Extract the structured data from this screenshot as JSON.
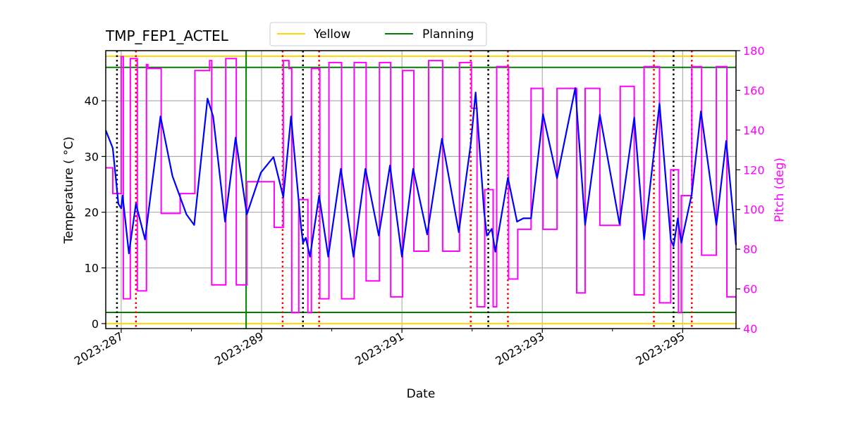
{
  "chart_data": {
    "type": "line",
    "title": "TMP_FEP1_ACTEL",
    "xlabel": "Date",
    "ylabel": "Temperature ($^\\circ$C)",
    "ylabel_display": "Temperature ( °C)",
    "y2label": "Pitch (deg)",
    "xlim": [
      286.78,
      295.76
    ],
    "ylim": [
      -0.9,
      49
    ],
    "y2lim": [
      40,
      180
    ],
    "x_major_ticks": [
      287,
      289,
      291,
      293,
      295
    ],
    "x_tick_labels": [
      "2023:287",
      "2023:289",
      "2023:291",
      "2023:293",
      "2023:295"
    ],
    "x_minor_ticks": [
      288,
      290,
      292,
      294
    ],
    "y_ticks": [
      0,
      10,
      20,
      30,
      40
    ],
    "y2_ticks": [
      40,
      60,
      80,
      100,
      120,
      140,
      160,
      180
    ],
    "grid": true,
    "legend": {
      "placement": "top-center",
      "entries": [
        {
          "name": "Yellow",
          "color": "#ffd700"
        },
        {
          "name": "Planning",
          "color": "#008000"
        }
      ]
    },
    "hlines": [
      {
        "name": "Yellow",
        "values": [
          0,
          48
        ],
        "color": "#ffd700"
      },
      {
        "name": "Planning",
        "values": [
          2,
          46
        ],
        "color": "#008000"
      }
    ],
    "vline_green": {
      "x": 288.78,
      "color": "#008000"
    },
    "vlines_black_dotted": [
      286.94,
      289.59,
      292.23,
      294.87
    ],
    "vlines_red_dotted": [
      287.21,
      289.3,
      289.82,
      291.98,
      292.51,
      294.59,
      295.13
    ],
    "series": [
      {
        "color": "#0000ff",
        "axis": "left",
        "points": [
          [
            286.78,
            34.7
          ],
          [
            286.88,
            31.5
          ],
          [
            286.96,
            21.5
          ],
          [
            287.0,
            20.7
          ],
          [
            287.02,
            23
          ],
          [
            287.11,
            12.6
          ],
          [
            287.21,
            21.5
          ],
          [
            287.34,
            15.1
          ],
          [
            287.56,
            37.2
          ],
          [
            287.73,
            26.5
          ],
          [
            287.93,
            19.6
          ],
          [
            288.04,
            17.7
          ],
          [
            288.23,
            40.4
          ],
          [
            288.31,
            37.2
          ],
          [
            288.48,
            18.3
          ],
          [
            288.63,
            33.4
          ],
          [
            288.79,
            19.6
          ],
          [
            288.99,
            27.1
          ],
          [
            289.17,
            29.9
          ],
          [
            289.31,
            22.7
          ],
          [
            289.42,
            37.2
          ],
          [
            289.56,
            17.7
          ],
          [
            289.59,
            14.5
          ],
          [
            289.63,
            15.4
          ],
          [
            289.69,
            12
          ],
          [
            289.82,
            23
          ],
          [
            289.95,
            12
          ],
          [
            290.13,
            27.8
          ],
          [
            290.31,
            12
          ],
          [
            290.48,
            27.8
          ],
          [
            290.67,
            15.8
          ],
          [
            290.83,
            28.4
          ],
          [
            291.0,
            12
          ],
          [
            291.16,
            27.8
          ],
          [
            291.36,
            16
          ],
          [
            291.57,
            33.2
          ],
          [
            291.81,
            16.4
          ],
          [
            291.98,
            32.2
          ],
          [
            292.05,
            41.5
          ],
          [
            292.17,
            20.2
          ],
          [
            292.21,
            15.8
          ],
          [
            292.28,
            17
          ],
          [
            292.33,
            12.9
          ],
          [
            292.51,
            26.2
          ],
          [
            292.64,
            18.3
          ],
          [
            292.73,
            18.9
          ],
          [
            292.84,
            18.9
          ],
          [
            293.01,
            37.6
          ],
          [
            293.21,
            26.1
          ],
          [
            293.47,
            42.3
          ],
          [
            293.61,
            17.7
          ],
          [
            293.82,
            37.5
          ],
          [
            294.1,
            17.9
          ],
          [
            294.31,
            37
          ],
          [
            294.45,
            15.1
          ],
          [
            294.67,
            39.5
          ],
          [
            294.83,
            15.1
          ],
          [
            294.87,
            13.9
          ],
          [
            294.93,
            18.9
          ],
          [
            294.98,
            14.5
          ],
          [
            295.13,
            23.3
          ],
          [
            295.26,
            38.1
          ],
          [
            295.48,
            17.7
          ],
          [
            295.62,
            32.8
          ],
          [
            295.76,
            14.1
          ]
        ]
      },
      {
        "color": "#ff00ff",
        "axis": "right",
        "step": true,
        "points": [
          [
            286.78,
            121
          ],
          [
            286.88,
            108
          ],
          [
            287.0,
            177
          ],
          [
            287.03,
            55
          ],
          [
            287.13,
            176
          ],
          [
            287.23,
            59
          ],
          [
            287.36,
            173
          ],
          [
            287.38,
            171
          ],
          [
            287.57,
            98
          ],
          [
            287.84,
            108
          ],
          [
            288.05,
            170
          ],
          [
            288.26,
            175
          ],
          [
            288.29,
            62
          ],
          [
            288.49,
            176
          ],
          [
            288.64,
            62
          ],
          [
            288.79,
            114
          ],
          [
            289.18,
            91
          ],
          [
            289.31,
            175
          ],
          [
            289.39,
            171
          ],
          [
            289.43,
            48
          ],
          [
            289.53,
            105
          ],
          [
            289.66,
            48
          ],
          [
            289.71,
            171
          ],
          [
            289.83,
            55
          ],
          [
            289.96,
            174
          ],
          [
            290.14,
            55
          ],
          [
            290.32,
            174
          ],
          [
            290.49,
            64
          ],
          [
            290.68,
            174
          ],
          [
            290.84,
            56
          ],
          [
            291.01,
            170
          ],
          [
            291.17,
            79
          ],
          [
            291.38,
            175
          ],
          [
            291.58,
            79
          ],
          [
            291.82,
            174
          ],
          [
            291.99,
            151
          ],
          [
            292.07,
            51
          ],
          [
            292.18,
            110
          ],
          [
            292.3,
            51
          ],
          [
            292.35,
            172
          ],
          [
            292.52,
            65
          ],
          [
            292.65,
            90
          ],
          [
            292.84,
            161
          ],
          [
            293.01,
            90
          ],
          [
            293.21,
            161
          ],
          [
            293.49,
            58
          ],
          [
            293.61,
            161
          ],
          [
            293.82,
            92
          ],
          [
            294.11,
            162
          ],
          [
            294.31,
            57
          ],
          [
            294.45,
            172
          ],
          [
            294.67,
            53
          ],
          [
            294.83,
            120
          ],
          [
            294.94,
            48
          ],
          [
            294.98,
            107
          ],
          [
            295.13,
            172
          ],
          [
            295.27,
            77
          ],
          [
            295.48,
            172
          ],
          [
            295.63,
            56
          ],
          [
            295.76,
            56
          ]
        ]
      }
    ]
  }
}
